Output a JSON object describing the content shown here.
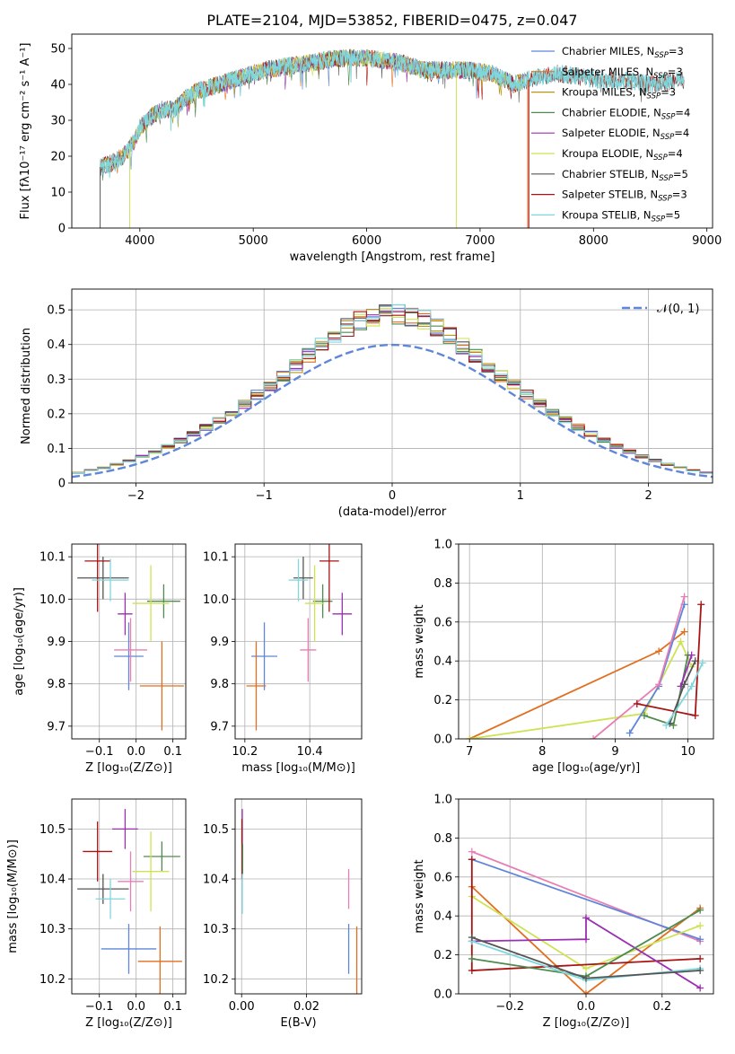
{
  "figure": {
    "title": "PLATE=2104, MJD=53852, FIBERID=0475, z=0.047"
  },
  "colors": {
    "Chabrier MILES": "#5f86d9",
    "Salpeter MILES": "#e26f1f",
    "Kroupa MILES": "#b79617",
    "Chabrier ELODIE": "#4f8a4f",
    "Salpeter ELODIE": "#9a2fb0",
    "Kroupa ELODIE": "#cfe255",
    "Chabrier STELIB": "#555555",
    "Salpeter STELIB": "#a81414",
    "Kroupa STELIB": "#7fd6dc",
    "extra": "#e77fb4"
  },
  "chart_data": [
    {
      "id": "spectrum",
      "type": "line",
      "title": "PLATE=2104, MJD=53852, FIBERID=0475, z=0.047",
      "xlabel": "wavelength [Angstrom, rest frame]",
      "ylabel": "Flux [fλ10⁻¹⁷ erg cm⁻² s⁻¹ A⁻¹]",
      "xlim": [
        3400,
        9050
      ],
      "ylim": [
        0,
        54
      ],
      "xticks": [
        4000,
        5000,
        6000,
        7000,
        8000,
        9000
      ],
      "yticks": [
        0,
        10,
        20,
        30,
        40,
        50
      ],
      "legend_position": "top-right",
      "legend": [
        {
          "name": "Chabrier MILES",
          "label": "Chabrier MILES, N",
          "sub": "SSP",
          "suffix": "=3"
        },
        {
          "name": "Salpeter MILES",
          "label": "Salpeter MILES, N",
          "sub": "SSP",
          "suffix": "=3"
        },
        {
          "name": "Kroupa MILES",
          "label": "Kroupa MILES, N",
          "sub": "SSP",
          "suffix": "=3"
        },
        {
          "name": "Chabrier ELODIE",
          "label": "Chabrier ELODIE, N",
          "sub": "SSP",
          "suffix": "=4"
        },
        {
          "name": "Salpeter ELODIE",
          "label": "Salpeter ELODIE, N",
          "sub": "SSP",
          "suffix": "=4"
        },
        {
          "name": "Kroupa ELODIE",
          "label": "Kroupa ELODIE, N",
          "sub": "SSP",
          "suffix": "=4"
        },
        {
          "name": "Chabrier STELIB",
          "label": "Chabrier STELIB, N",
          "sub": "SSP",
          "suffix": "=5"
        },
        {
          "name": "Salpeter STELIB",
          "label": "Salpeter STELIB, N",
          "sub": "SSP",
          "suffix": "=3"
        },
        {
          "name": "Kroupa STELIB",
          "label": "Kroupa STELIB, N",
          "sub": "SSP",
          "suffix": "=5"
        }
      ],
      "continuum": [
        [
          3650,
          17
        ],
        [
          3750,
          18
        ],
        [
          3850,
          20
        ],
        [
          3950,
          24
        ],
        [
          4000,
          28
        ],
        [
          4100,
          31
        ],
        [
          4200,
          33
        ],
        [
          4300,
          33
        ],
        [
          4400,
          36
        ],
        [
          4500,
          38
        ],
        [
          4700,
          40
        ],
        [
          4900,
          42
        ],
        [
          5100,
          44
        ],
        [
          5300,
          45
        ],
        [
          5500,
          46
        ],
        [
          5700,
          47
        ],
        [
          5900,
          47.5
        ],
        [
          6100,
          47
        ],
        [
          6300,
          46
        ],
        [
          6500,
          44
        ],
        [
          6700,
          44
        ],
        [
          6900,
          44
        ],
        [
          7100,
          43
        ],
        [
          7300,
          40
        ],
        [
          7500,
          42
        ],
        [
          7700,
          43
        ],
        [
          7900,
          42
        ],
        [
          8100,
          41
        ],
        [
          8300,
          41
        ],
        [
          8500,
          40
        ],
        [
          8700,
          41
        ],
        [
          8800,
          41
        ]
      ],
      "noise": 2.5,
      "dips": [
        {
          "x": 3650,
          "y": 0,
          "series": "Chabrier STELIB"
        },
        {
          "x": 3910,
          "y": 0,
          "series": "Kroupa ELODIE"
        },
        {
          "x": 6790,
          "y": 0,
          "series": "Kroupa ELODIE"
        },
        {
          "x": 7420,
          "y": 0,
          "series": "Salpeter MILES"
        },
        {
          "x": 7430,
          "y": 0,
          "series": "Salpeter STELIB"
        }
      ]
    },
    {
      "id": "residuals",
      "type": "histogram",
      "xlabel": "(data-model)/error",
      "ylabel": "Normed distribution",
      "xlim": [
        -2.5,
        2.5
      ],
      "ylim": [
        0,
        0.56
      ],
      "xticks": [
        -2,
        -1,
        0,
        1,
        2
      ],
      "yticks": [
        0,
        0.1,
        0.2,
        0.3,
        0.4,
        0.5
      ],
      "grid": true,
      "legend_position": "top-right",
      "reference_curve": {
        "label": "𝒩(0, 1)",
        "mean": 0,
        "sigma": 1,
        "style": "dashed"
      },
      "bin_width": 0.1,
      "range": [
        -2.5,
        2.5
      ],
      "series_order": [
        "Chabrier MILES",
        "Salpeter MILES",
        "Kroupa MILES",
        "Chabrier ELODIE",
        "Salpeter ELODIE",
        "Kroupa ELODIE",
        "Chabrier STELIB",
        "Salpeter STELIB",
        "Kroupa STELIB"
      ],
      "peak_scale": 1.22,
      "bin_scatter": 0.06
    },
    {
      "id": "age-vs-Z",
      "type": "errorbar",
      "xlabel": "Z [log₁₀(Z/Z⊙)]",
      "ylabel": "age  [log₁₀(age/yr)]",
      "xlim": [
        -0.175,
        0.135
      ],
      "ylim": [
        9.67,
        10.13
      ],
      "xticks": [
        -0.1,
        0.0,
        0.1
      ],
      "yticks": [
        9.7,
        9.8,
        9.9,
        10.0,
        10.1
      ],
      "xtick_labels": [
        "−0.1",
        "0.0",
        "0.1"
      ],
      "ytick_labels": [
        "9.7",
        "9.8",
        "9.9",
        "10.0",
        "10.1"
      ],
      "grid": true,
      "points": [
        {
          "series": "Chabrier MILES",
          "x": -0.02,
          "y": 9.865,
          "xerr": 0.04,
          "yerr": 0.08
        },
        {
          "series": "Salpeter MILES",
          "x": 0.07,
          "y": 9.795,
          "xerr": 0.06,
          "yerr": 0.105
        },
        {
          "series": "Kroupa MILES",
          "x": 0.07,
          "y": 9.795,
          "xerr": 0.0,
          "yerr": 0.0
        },
        {
          "series": "Chabrier ELODIE",
          "x": 0.075,
          "y": 9.995,
          "xerr": 0.045,
          "yerr": 0.04
        },
        {
          "series": "Salpeter ELODIE",
          "x": -0.03,
          "y": 9.965,
          "xerr": 0.02,
          "yerr": 0.05
        },
        {
          "series": "Kroupa ELODIE",
          "x": 0.04,
          "y": 9.99,
          "xerr": 0.05,
          "yerr": 0.09
        },
        {
          "series": "Chabrier STELIB",
          "x": -0.09,
          "y": 10.05,
          "xerr": 0.07,
          "yerr": 0.05
        },
        {
          "series": "Salpeter STELIB",
          "x": -0.105,
          "y": 10.09,
          "xerr": 0.035,
          "yerr": 0.12
        },
        {
          "series": "Kroupa STELIB",
          "x": -0.07,
          "y": 10.045,
          "xerr": 0.05,
          "yerr": 0.05
        },
        {
          "series": "extra",
          "x": -0.015,
          "y": 9.88,
          "xerr": 0.045,
          "yerr": 0.075
        }
      ]
    },
    {
      "id": "age-vs-mass",
      "type": "errorbar",
      "xlabel": "mass [log₁₀(M/M⊙)]",
      "ylabel": "",
      "xlim": [
        10.17,
        10.56
      ],
      "ylim": [
        9.67,
        10.13
      ],
      "xticks": [
        10.2,
        10.4
      ],
      "yticks": [
        9.7,
        9.8,
        9.9,
        10.0,
        10.1
      ],
      "xtick_labels": [
        "10.2",
        "10.4"
      ],
      "ytick_labels": [
        "9.7",
        "9.8",
        "9.9",
        "10.0",
        "10.1"
      ],
      "grid": true,
      "points": [
        {
          "series": "Chabrier MILES",
          "x": 10.26,
          "y": 9.865,
          "xerr": 0.04,
          "yerr": 0.08
        },
        {
          "series": "Salpeter MILES",
          "x": 10.235,
          "y": 9.795,
          "xerr": 0.03,
          "yerr": 0.105
        },
        {
          "series": "Chabrier ELODIE",
          "x": 10.44,
          "y": 9.995,
          "xerr": 0.03,
          "yerr": 0.04
        },
        {
          "series": "Salpeter ELODIE",
          "x": 10.5,
          "y": 9.965,
          "xerr": 0.03,
          "yerr": 0.05
        },
        {
          "series": "Kroupa ELODIE",
          "x": 10.415,
          "y": 9.99,
          "xerr": 0.03,
          "yerr": 0.09
        },
        {
          "series": "Chabrier STELIB",
          "x": 10.38,
          "y": 10.05,
          "xerr": 0.03,
          "yerr": 0.05
        },
        {
          "series": "Salpeter STELIB",
          "x": 10.46,
          "y": 10.09,
          "xerr": 0.03,
          "yerr": 0.12
        },
        {
          "series": "Kroupa STELIB",
          "x": 10.365,
          "y": 10.045,
          "xerr": 0.03,
          "yerr": 0.05
        },
        {
          "series": "extra",
          "x": 10.395,
          "y": 9.88,
          "xerr": 0.025,
          "yerr": 0.075
        }
      ]
    },
    {
      "id": "massweight-vs-age",
      "type": "line",
      "xlabel": "age  [log₁₀(age/yr)]",
      "ylabel": "mass weight",
      "xlim": [
        6.85,
        10.35
      ],
      "ylim": [
        0,
        1.0
      ],
      "xticks": [
        7,
        8,
        9,
        10
      ],
      "yticks": [
        0,
        0.2,
        0.4,
        0.6,
        0.8,
        1.0
      ],
      "xtick_labels": [
        "7",
        "8",
        "9",
        "10"
      ],
      "ytick_labels": [
        "0.0",
        "0.2",
        "0.4",
        "0.6",
        "0.8",
        "1.0"
      ],
      "grid": true,
      "series": [
        {
          "name": "Salpeter MILES",
          "points": [
            [
              7.0,
              0.0
            ],
            [
              9.6,
              0.45
            ],
            [
              9.95,
              0.55
            ]
          ]
        },
        {
          "name": "Kroupa ELODIE",
          "points": [
            [
              7.0,
              0.0
            ],
            [
              9.4,
              0.13
            ],
            [
              9.9,
              0.5
            ],
            [
              10.05,
              0.37
            ]
          ]
        },
        {
          "name": "Chabrier MILES",
          "points": [
            [
              9.2,
              0.03
            ],
            [
              9.6,
              0.27
            ],
            [
              9.95,
              0.69
            ]
          ]
        },
        {
          "name": "extra",
          "points": [
            [
              8.7,
              0.0
            ],
            [
              9.6,
              0.28
            ],
            [
              9.95,
              0.73
            ]
          ]
        },
        {
          "name": "Chabrier ELODIE",
          "points": [
            [
              9.4,
              0.12
            ],
            [
              9.8,
              0.07
            ],
            [
              10.0,
              0.43
            ]
          ]
        },
        {
          "name": "Salpeter ELODIE",
          "points": [
            [
              9.9,
              0.27
            ],
            [
              10.05,
              0.43
            ]
          ]
        },
        {
          "name": "Chabrier STELIB",
          "points": [
            [
              9.75,
              0.08
            ],
            [
              9.95,
              0.28
            ],
            [
              10.1,
              0.4
            ]
          ]
        },
        {
          "name": "Salpeter STELIB",
          "points": [
            [
              9.3,
              0.18
            ],
            [
              10.1,
              0.12
            ],
            [
              10.18,
              0.69
            ]
          ]
        },
        {
          "name": "Kroupa STELIB",
          "points": [
            [
              9.7,
              0.07
            ],
            [
              10.05,
              0.27
            ],
            [
              10.2,
              0.39
            ]
          ]
        }
      ]
    },
    {
      "id": "mass-vs-Z",
      "type": "errorbar",
      "xlabel": "Z [log₁₀(Z/Z⊙)]",
      "ylabel": "mass [log₁₀(M/M⊙)]",
      "xlim": [
        -0.175,
        0.135
      ],
      "ylim": [
        10.17,
        10.56
      ],
      "xticks": [
        -0.1,
        0.0,
        0.1
      ],
      "yticks": [
        10.2,
        10.3,
        10.4,
        10.5
      ],
      "xtick_labels": [
        "−0.1",
        "0.0",
        "0.1"
      ],
      "ytick_labels": [
        "10.2",
        "10.3",
        "10.4",
        "10.5"
      ],
      "grid": true,
      "points": [
        {
          "series": "Chabrier MILES",
          "x": -0.02,
          "y": 10.26,
          "xerr": 0.075,
          "yerr": 0.05
        },
        {
          "series": "Salpeter MILES",
          "x": 0.065,
          "y": 10.235,
          "xerr": 0.06,
          "yerr": 0.07
        },
        {
          "series": "Chabrier ELODIE",
          "x": 0.07,
          "y": 10.445,
          "xerr": 0.05,
          "yerr": 0.03
        },
        {
          "series": "Salpeter ELODIE",
          "x": -0.03,
          "y": 10.5,
          "xerr": 0.035,
          "yerr": 0.04
        },
        {
          "series": "Kroupa ELODIE",
          "x": 0.04,
          "y": 10.415,
          "xerr": 0.05,
          "yerr": 0.08
        },
        {
          "series": "Chabrier STELIB",
          "x": -0.09,
          "y": 10.38,
          "xerr": 0.07,
          "yerr": 0.03
        },
        {
          "series": "Salpeter STELIB",
          "x": -0.105,
          "y": 10.455,
          "xerr": 0.04,
          "yerr": 0.06
        },
        {
          "series": "Kroupa STELIB",
          "x": -0.07,
          "y": 10.36,
          "xerr": 0.04,
          "yerr": 0.04
        },
        {
          "series": "extra",
          "x": -0.015,
          "y": 10.395,
          "xerr": 0.035,
          "yerr": 0.06
        }
      ]
    },
    {
      "id": "mass-vs-ebv",
      "type": "errorbar",
      "xlabel": "E(B-V)",
      "ylabel": "",
      "xlim": [
        -0.002,
        0.037
      ],
      "ylim": [
        10.17,
        10.56
      ],
      "xticks": [
        0.0,
        0.02
      ],
      "yticks": [
        10.2,
        10.3,
        10.4,
        10.5
      ],
      "xtick_labels": [
        "0.00",
        "0.02"
      ],
      "ytick_labels": [
        "10.2",
        "10.3",
        "10.4",
        "10.5"
      ],
      "grid": true,
      "points": [
        {
          "series": "Chabrier MILES",
          "x": 0.033,
          "y": 10.26,
          "xerr": 0.0,
          "yerr": 0.05
        },
        {
          "series": "Salpeter MILES",
          "x": 0.0355,
          "y": 10.235,
          "xerr": 0.0,
          "yerr": 0.07
        },
        {
          "series": "extra",
          "x": 0.033,
          "y": 10.38,
          "xerr": 0.0,
          "yerr": 0.04
        },
        {
          "series": "Salpeter ELODIE",
          "x": 0.0002,
          "y": 10.5,
          "xerr": 0.0,
          "yerr": 0.04
        },
        {
          "series": "Salpeter STELIB",
          "x": 0.0001,
          "y": 10.46,
          "xerr": 0.0,
          "yerr": 0.06
        },
        {
          "series": "Kroupa STELIB",
          "x": 0.0002,
          "y": 10.37,
          "xerr": 0.0,
          "yerr": 0.04
        },
        {
          "series": "Chabrier ELODIE",
          "x": 0.0003,
          "y": 10.44,
          "xerr": 0.0,
          "yerr": 0.03
        }
      ]
    },
    {
      "id": "massweight-vs-Z",
      "type": "line",
      "xlabel": "Z [log₁₀(Z/Z⊙)]",
      "ylabel": "mass weight",
      "xlim": [
        -0.335,
        0.335
      ],
      "ylim": [
        0,
        1.0
      ],
      "xticks": [
        -0.2,
        0.0,
        0.2
      ],
      "yticks": [
        0,
        0.2,
        0.4,
        0.6,
        0.8,
        1.0
      ],
      "xtick_labels": [
        "−0.2",
        "0.0",
        "0.2"
      ],
      "ytick_labels": [
        "0.0",
        "0.2",
        "0.4",
        "0.6",
        "0.8",
        "1.0"
      ],
      "grid": true,
      "series": [
        {
          "name": "extra",
          "points": [
            [
              -0.3,
              0.73
            ],
            [
              0.3,
              0.27
            ]
          ]
        },
        {
          "name": "Chabrier MILES",
          "points": [
            [
              -0.3,
              0.69
            ],
            [
              0.3,
              0.28
            ]
          ]
        },
        {
          "name": "Salpeter MILES",
          "points": [
            [
              -0.3,
              0.55
            ],
            [
              0.0,
              0.0
            ],
            [
              0.3,
              0.44
            ]
          ]
        },
        {
          "name": "Kroupa ELODIE",
          "points": [
            [
              -0.3,
              0.5
            ],
            [
              0.0,
              0.13
            ],
            [
              0.3,
              0.35
            ]
          ]
        },
        {
          "name": "Salpeter STELIB",
          "points": [
            [
              -0.3,
              0.69
            ],
            [
              -0.3,
              0.12
            ],
            [
              0.3,
              0.18
            ]
          ]
        },
        {
          "name": "Salpeter ELODIE",
          "points": [
            [
              -0.3,
              0.27
            ],
            [
              0.0,
              0.28
            ],
            [
              0.0,
              0.39
            ],
            [
              0.3,
              0.03
            ]
          ]
        },
        {
          "name": "Chabrier ELODIE",
          "points": [
            [
              -0.3,
              0.18
            ],
            [
              0.0,
              0.09
            ],
            [
              0.3,
              0.43
            ]
          ]
        },
        {
          "name": "Kroupa STELIB",
          "points": [
            [
              -0.3,
              0.27
            ],
            [
              0.0,
              0.07
            ],
            [
              0.3,
              0.13
            ]
          ]
        },
        {
          "name": "Chabrier STELIB",
          "points": [
            [
              -0.3,
              0.29
            ],
            [
              0.0,
              0.08
            ],
            [
              0.3,
              0.12
            ]
          ]
        }
      ]
    }
  ]
}
